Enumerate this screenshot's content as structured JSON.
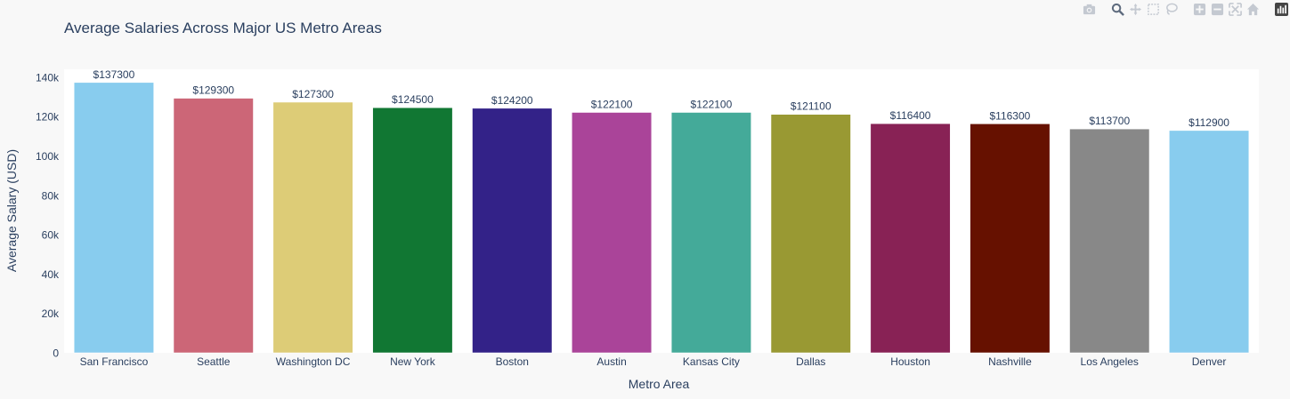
{
  "chart_data": {
    "type": "bar",
    "title": "Average Salaries Across Major US Metro Areas",
    "xlabel": "Metro Area",
    "ylabel": "Average Salary (USD)",
    "ylim": [
      0,
      144000
    ],
    "yticks": [
      0,
      20000,
      40000,
      60000,
      80000,
      100000,
      120000,
      140000
    ],
    "ytick_labels": [
      "0",
      "20k",
      "40k",
      "60k",
      "80k",
      "100k",
      "120k",
      "140k"
    ],
    "categories": [
      "San Francisco",
      "Seattle",
      "Washington DC",
      "New York",
      "Boston",
      "Austin",
      "Kansas City",
      "Dallas",
      "Houston",
      "Nashville",
      "Los Angeles",
      "Denver"
    ],
    "values": [
      137300,
      129300,
      127300,
      124500,
      124200,
      122100,
      122100,
      121100,
      116400,
      116300,
      113700,
      112900
    ],
    "data_labels": [
      "$137300",
      "$129300",
      "$127300",
      "$124500",
      "$124200",
      "$122100",
      "$122100",
      "$121100",
      "$116400",
      "$116300",
      "$113700",
      "$112900"
    ],
    "colors": [
      "#88ccee",
      "#cc6677",
      "#ddcc77",
      "#117733",
      "#332288",
      "#aa4499",
      "#44aa99",
      "#999933",
      "#882255",
      "#661100",
      "#888888",
      "#88ccee"
    ],
    "grid": false,
    "legend": "none"
  },
  "modebar": {
    "icons": [
      "camera-icon",
      "zoom-icon",
      "pan-icon",
      "box-select-icon",
      "lasso-icon",
      "zoom-in-icon",
      "zoom-out-icon",
      "autoscale-icon",
      "reset-axes-icon",
      "plotly-logo-icon"
    ]
  }
}
